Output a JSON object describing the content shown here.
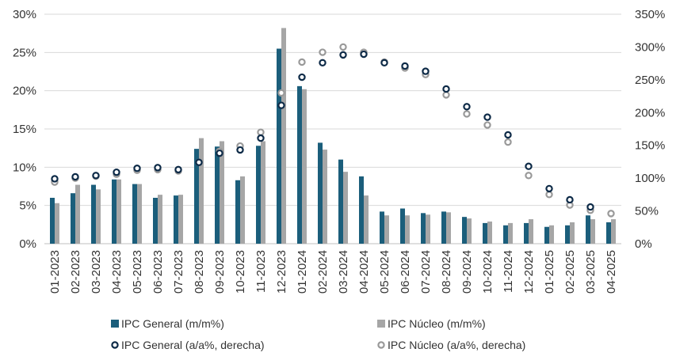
{
  "chart_data": {
    "type": "bar",
    "title": "",
    "categories": [
      "01-2023",
      "02-2023",
      "03-2023",
      "04-2023",
      "05-2023",
      "06-2023",
      "07-2023",
      "08-2023",
      "09-2023",
      "10-2023",
      "11-2023",
      "12-2023",
      "01-2024",
      "02-2024",
      "03-2024",
      "04-2024",
      "05-2024",
      "06-2024",
      "07-2024",
      "08-2024",
      "09-2024",
      "10-2024",
      "11-2024",
      "12-2024",
      "01-2025",
      "02-2025",
      "03-2025",
      "04-2025"
    ],
    "left_axis": {
      "ylim": [
        0,
        30
      ],
      "ticks": [
        0,
        5,
        10,
        15,
        20,
        25,
        30
      ],
      "tick_labels": [
        "0%",
        "5%",
        "10%",
        "15%",
        "20%",
        "25%",
        "30%"
      ]
    },
    "right_axis": {
      "ylim": [
        0,
        350
      ],
      "ticks": [
        0,
        50,
        100,
        150,
        200,
        250,
        300,
        350
      ],
      "tick_labels": [
        "0%",
        "50%",
        "100%",
        "150%",
        "200%",
        "250%",
        "300%",
        "350%"
      ]
    },
    "grid": true,
    "legend_position": "bottom",
    "series": [
      {
        "name": "IPC General (m/m%)",
        "kind": "bar",
        "axis": "left",
        "color": "#1b5e7b",
        "values": [
          6.0,
          6.6,
          7.7,
          8.4,
          7.8,
          6.0,
          6.3,
          12.4,
          12.7,
          8.3,
          12.8,
          25.5,
          20.6,
          13.2,
          11.0,
          8.8,
          4.2,
          4.6,
          4.0,
          4.2,
          3.5,
          2.7,
          2.4,
          2.7,
          2.2,
          2.4,
          3.7,
          2.8
        ]
      },
      {
        "name": "IPC Núcleo (m/m%)",
        "kind": "bar",
        "axis": "left",
        "color": "#a6a6a6",
        "values": [
          5.3,
          7.7,
          7.1,
          8.4,
          7.8,
          6.4,
          6.4,
          13.8,
          13.4,
          8.8,
          13.4,
          28.2,
          20.2,
          12.3,
          9.4,
          6.3,
          3.7,
          3.7,
          3.8,
          4.1,
          3.3,
          2.9,
          2.7,
          3.2,
          2.4,
          2.8,
          3.2,
          3.2
        ]
      },
      {
        "name": "IPC General (a/a%, derecha)",
        "kind": "scatter",
        "axis": "right",
        "color": "#0d2a47",
        "values": [
          99,
          102,
          104,
          109,
          115,
          116,
          113,
          124,
          138,
          143,
          161,
          211,
          254,
          276,
          288,
          289,
          276,
          271,
          263,
          236,
          209,
          193,
          166,
          118,
          84,
          67,
          56,
          null
        ]
      },
      {
        "name": "IPC Núcleo (a/a%, derecha)",
        "kind": "scatter",
        "axis": "right",
        "color": "#999999",
        "values": [
          94,
          100,
          103,
          106,
          112,
          113,
          111,
          124,
          141,
          149,
          170,
          230,
          277,
          292,
          300,
          292,
          277,
          268,
          258,
          227,
          198,
          181,
          155,
          104,
          75,
          59,
          51,
          46
        ]
      }
    ]
  }
}
